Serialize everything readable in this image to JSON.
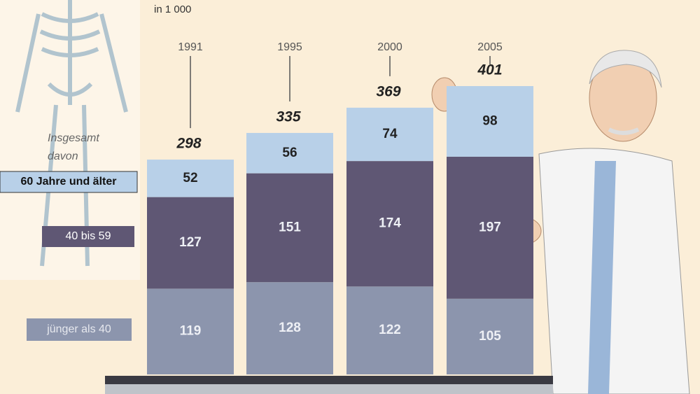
{
  "chart_data": {
    "type": "stacked-bar",
    "subtitle": "in 1 000",
    "categories": [
      "1991",
      "1995",
      "2000",
      "2005"
    ],
    "series": [
      {
        "name": "jünger als 40",
        "color": "#8c95ad",
        "values": [
          119,
          128,
          122,
          105
        ]
      },
      {
        "name": "40 bis 59",
        "color": "#5f5774",
        "values": [
          127,
          151,
          174,
          197
        ]
      },
      {
        "name": "60 Jahre und älter",
        "color": "#b8d0e8",
        "values": [
          52,
          56,
          74,
          98
        ]
      }
    ],
    "totals": {
      "name": "Insgesamt",
      "values": [
        298,
        335,
        369,
        401
      ]
    },
    "legend_heading": "davon"
  }
}
